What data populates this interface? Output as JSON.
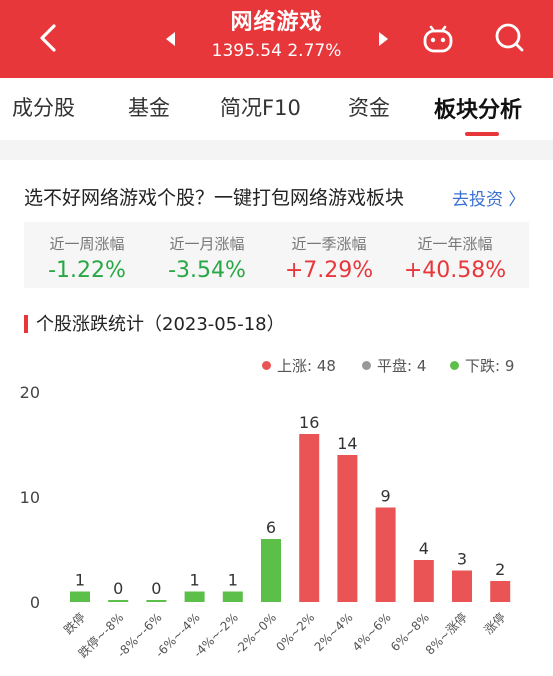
{
  "header": {
    "title": "网络游戏",
    "subtitle": "1395.54 2.77%",
    "color": "#e8373b"
  },
  "icons": {
    "back": "chevron-left-icon",
    "prev": "triangle-left-icon",
    "next": "triangle-right-icon",
    "robot": "robot-icon",
    "search": "search-icon"
  },
  "tabs": [
    {
      "label": "成分股"
    },
    {
      "label": "基金"
    },
    {
      "label": "简况F10"
    },
    {
      "label": "资金"
    },
    {
      "label": "板块分析",
      "active": true
    }
  ],
  "promo": {
    "text": "选不好网络游戏个股？一键打包网络游戏板块",
    "link": "去投资 〉"
  },
  "stats": [
    {
      "label": "近一周涨幅",
      "value": "-1.22%",
      "color": "#28a745"
    },
    {
      "label": "近一月涨幅",
      "value": "-3.54%",
      "color": "#28a745"
    },
    {
      "label": "近一季涨幅",
      "value": "+7.29%",
      "color": "#e8373b"
    },
    {
      "label": "近一年涨幅",
      "value": "+40.58%",
      "color": "#e8373b"
    }
  ],
  "section": {
    "title": "个股涨跌统计（2023-05-18）"
  },
  "legend": [
    {
      "label": "上涨: 48",
      "color": "#ea5454"
    },
    {
      "label": "平盘: 4",
      "color": "#999999"
    },
    {
      "label": "下跌: 9",
      "color": "#5cbf4a"
    }
  ],
  "chart_data": {
    "type": "bar",
    "categories": [
      "跌停",
      "跌停~-8%",
      "-8%~-6%",
      "-6%~-4%",
      "-4%~-2%",
      "-2%~0%",
      "0%~2%",
      "2%~4%",
      "4%~6%",
      "6%~8%",
      "8%~涨停",
      "涨停"
    ],
    "values": [
      1,
      0,
      0,
      1,
      1,
      6,
      16,
      14,
      9,
      4,
      3,
      2
    ],
    "colors": [
      "#5cbf4a",
      "#5cbf4a",
      "#5cbf4a",
      "#5cbf4a",
      "#5cbf4a",
      "#5cbf4a",
      "#ea5454",
      "#ea5454",
      "#ea5454",
      "#ea5454",
      "#ea5454",
      "#ea5454"
    ],
    "yticks": [
      0,
      10,
      20
    ],
    "ylim": [
      0,
      20
    ],
    "grid": false
  }
}
